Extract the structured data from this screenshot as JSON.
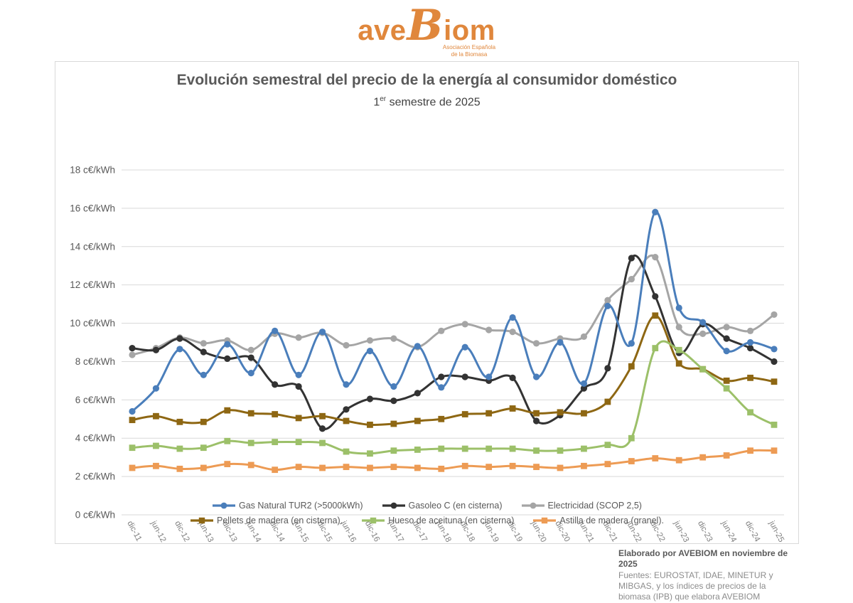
{
  "logo": {
    "text_ave": "ave",
    "text_b": "B",
    "text_iom": "iom",
    "tagline_line1": "Asociación Española",
    "tagline_line2": "de la Biomasa",
    "brand_color": "#e0873c"
  },
  "chart_data": {
    "type": "line",
    "title": "Evolución semestral del precio de la energía al consumidor doméstico",
    "subtitle_prefix": "1",
    "subtitle_sup": "er",
    "subtitle_rest": " semestre de 2025",
    "y_unit": "c€/kWh",
    "ylim": [
      0,
      18
    ],
    "y_tick_step": 2,
    "grid": true,
    "legend_position": "bottom",
    "categories": [
      "dic-11",
      "jun-12",
      "dic-12",
      "jun-13",
      "dic-13",
      "jun-14",
      "dic-14",
      "jun-15",
      "dic-15",
      "jun-16",
      "dic-16",
      "jun-17",
      "dic-17",
      "jun-18",
      "dic-18",
      "jun-19",
      "dic-19",
      "jun-20",
      "dic-20",
      "jun-21",
      "dic-21",
      "jun-22",
      "dic-22",
      "jun-23",
      "dic-23",
      "jun-24",
      "dic-24",
      "jun-25"
    ],
    "series": [
      {
        "name": "Electricidad (SCOP 2,5)",
        "color": "#a5a5a5",
        "marker": "circle",
        "legend_slot": 2,
        "values": [
          8.35,
          8.7,
          9.25,
          8.95,
          9.1,
          8.6,
          9.45,
          9.25,
          9.5,
          8.85,
          9.1,
          9.2,
          8.75,
          9.6,
          9.95,
          9.65,
          9.55,
          8.95,
          9.2,
          9.3,
          11.2,
          12.3,
          13.45,
          9.8,
          9.45,
          9.8,
          9.6,
          10.45
        ]
      },
      {
        "name": "Gasoleo C (en cisterna)",
        "color": "#333333",
        "marker": "circle",
        "legend_slot": 1,
        "values": [
          8.7,
          8.6,
          9.2,
          8.5,
          8.15,
          8.2,
          6.8,
          6.7,
          4.5,
          5.5,
          6.05,
          5.95,
          6.35,
          7.2,
          7.2,
          7.0,
          7.15,
          4.9,
          5.2,
          6.6,
          7.65,
          13.4,
          11.4,
          8.45,
          9.95,
          9.2,
          8.7,
          8.0
        ]
      },
      {
        "name": "Pellets de madera (en cisterna).",
        "color": "#8e6713",
        "marker": "square",
        "legend_slot": 3,
        "values": [
          4.95,
          5.15,
          4.85,
          4.85,
          5.45,
          5.3,
          5.25,
          5.05,
          5.15,
          4.9,
          4.7,
          4.75,
          4.9,
          5.0,
          5.25,
          5.3,
          5.55,
          5.3,
          5.35,
          5.3,
          5.9,
          7.75,
          10.4,
          7.9,
          7.6,
          7.0,
          7.15,
          6.95
        ]
      },
      {
        "name": "Hueso de aceituna (en cisterna)",
        "color": "#9cc069",
        "marker": "square",
        "legend_slot": 4,
        "values": [
          3.5,
          3.6,
          3.45,
          3.5,
          3.85,
          3.75,
          3.8,
          3.8,
          3.75,
          3.3,
          3.2,
          3.35,
          3.4,
          3.45,
          3.45,
          3.45,
          3.45,
          3.35,
          3.35,
          3.45,
          3.65,
          4.0,
          8.7,
          8.6,
          7.6,
          6.6,
          5.35,
          4.7
        ]
      },
      {
        "name": "Astilla de madera (granel).",
        "color": "#ed9b54",
        "marker": "square",
        "legend_slot": 5,
        "values": [
          2.45,
          2.55,
          2.4,
          2.45,
          2.65,
          2.6,
          2.35,
          2.5,
          2.45,
          2.5,
          2.45,
          2.5,
          2.45,
          2.4,
          2.55,
          2.5,
          2.55,
          2.5,
          2.45,
          2.55,
          2.65,
          2.8,
          2.95,
          2.85,
          3.0,
          3.1,
          3.35,
          3.35
        ]
      },
      {
        "name": "Gas Natural TUR2 (>5000kWh)",
        "color": "#4a7ebb",
        "marker": "circle",
        "legend_slot": 0,
        "values": [
          5.4,
          6.6,
          8.65,
          7.3,
          8.9,
          7.4,
          9.6,
          7.3,
          9.55,
          6.8,
          8.55,
          6.7,
          8.8,
          6.65,
          8.75,
          7.2,
          10.3,
          7.2,
          9.0,
          6.85,
          10.9,
          8.95,
          15.8,
          10.8,
          10.05,
          8.55,
          9.0,
          8.65
        ]
      }
    ],
    "gridline_color": "#d9d9d9"
  },
  "footer": {
    "credit": "Elaborado por AVEBIOM en noviembre de 2025",
    "sources": "Fuentes: EUROSTAT, IDAE, MINETUR y MIBGAS, y los índices de precios de la biomasa (IPB) que elabora AVEBIOM"
  }
}
